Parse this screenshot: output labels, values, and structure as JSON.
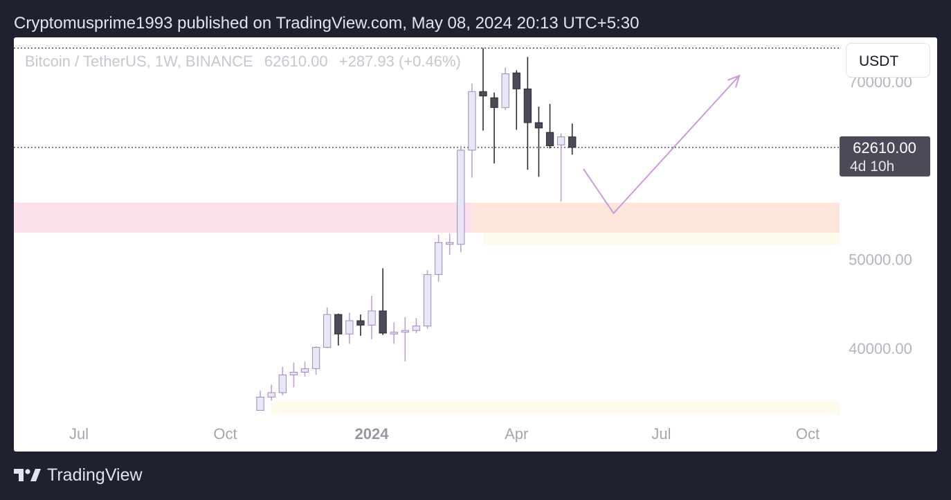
{
  "header": {
    "publish_text": "Cryptomusprime1993 published on TradingView.com, May 08, 2024 20:13 UTC+5:30"
  },
  "symbol": {
    "name": "Bitcoin / TetherUS, 1W, BINANCE",
    "price": "62610.00",
    "change": "+287.93 (+0.46%)"
  },
  "currency_button": {
    "label": "USDT"
  },
  "price_tag": {
    "price": "62610.00",
    "countdown": "4d 10h",
    "color": "#4a4b57"
  },
  "footer": {
    "brand": "TradingView",
    "logo_icon": "tradingview-logo-icon"
  },
  "colors": {
    "bull_fill": "#e9e7f5",
    "bull_stroke": "#9b8ab8",
    "bear_fill": "#4a4b57",
    "wick": "#2b2b36",
    "wick_bull": "#c39ed6",
    "annotation": "#cc99d9"
  },
  "chart_data": {
    "type": "candlestick",
    "timeframe": "1W",
    "ylim": [
      32500,
      75000
    ],
    "y_ticks": [
      40000,
      50000,
      70000
    ],
    "y_tick_labels": [
      "40000.00",
      "50000.00",
      "70000.00"
    ],
    "x_ticks": [
      {
        "label": "Jul",
        "date": "2023-07-01",
        "bold": false
      },
      {
        "label": "Oct",
        "date": "2023-10-01",
        "bold": false
      },
      {
        "label": "2024",
        "date": "2024-01-01",
        "bold": true
      },
      {
        "label": "Apr",
        "date": "2024-04-01",
        "bold": false
      },
      {
        "label": "Jul",
        "date": "2024-07-01",
        "bold": false
      },
      {
        "label": "Oct",
        "date": "2024-10-01",
        "bold": false
      }
    ],
    "first_candle_date": "2023-10-23",
    "candles": [
      {
        "o": 33000,
        "h": 35200,
        "l": 33000,
        "c": 34500
      },
      {
        "o": 34500,
        "h": 35900,
        "l": 34100,
        "c": 35000
      },
      {
        "o": 35000,
        "h": 37900,
        "l": 34700,
        "c": 37000
      },
      {
        "o": 37000,
        "h": 38400,
        "l": 35600,
        "c": 37300
      },
      {
        "o": 37300,
        "h": 38500,
        "l": 36800,
        "c": 37700
      },
      {
        "o": 37700,
        "h": 40200,
        "l": 37000,
        "c": 40100
      },
      {
        "o": 40100,
        "h": 44600,
        "l": 40000,
        "c": 43800
      },
      {
        "o": 43800,
        "h": 43900,
        "l": 40300,
        "c": 41600
      },
      {
        "o": 41600,
        "h": 44000,
        "l": 40500,
        "c": 43100
      },
      {
        "o": 43100,
        "h": 43800,
        "l": 41400,
        "c": 42600
      },
      {
        "o": 42600,
        "h": 45900,
        "l": 41000,
        "c": 44200
      },
      {
        "o": 44200,
        "h": 49000,
        "l": 41500,
        "c": 41700
      },
      {
        "o": 41700,
        "h": 42900,
        "l": 40500,
        "c": 41800
      },
      {
        "o": 41800,
        "h": 43500,
        "l": 38500,
        "c": 42000
      },
      {
        "o": 42000,
        "h": 43400,
        "l": 41700,
        "c": 42500
      },
      {
        "o": 42500,
        "h": 48800,
        "l": 42200,
        "c": 48300
      },
      {
        "o": 48300,
        "h": 52800,
        "l": 47500,
        "c": 51900
      },
      {
        "o": 51700,
        "h": 52900,
        "l": 50500,
        "c": 51900
      },
      {
        "o": 51700,
        "h": 62800,
        "l": 50800,
        "c": 62300
      },
      {
        "o": 62300,
        "h": 69800,
        "l": 59200,
        "c": 68900
      },
      {
        "o": 68900,
        "h": 73800,
        "l": 64500,
        "c": 68400
      },
      {
        "o": 68200,
        "h": 68800,
        "l": 60800,
        "c": 67100
      },
      {
        "o": 67100,
        "h": 71600,
        "l": 66800,
        "c": 70900
      },
      {
        "o": 71000,
        "h": 71300,
        "l": 64600,
        "c": 69200
      },
      {
        "o": 69200,
        "h": 72800,
        "l": 60100,
        "c": 65400
      },
      {
        "o": 65400,
        "h": 67200,
        "l": 59300,
        "c": 64800
      },
      {
        "o": 64300,
        "h": 67500,
        "l": 62500,
        "c": 62800
      },
      {
        "o": 62900,
        "h": 64200,
        "l": 56500,
        "c": 63800
      },
      {
        "o": 63800,
        "h": 65300,
        "l": 61800,
        "c": 62610
      }
    ],
    "horizontal_lines": [
      {
        "price": 73800,
        "style": "dotted"
      },
      {
        "price": 62610,
        "style": "dotted"
      }
    ],
    "zones": [
      {
        "from_date": "2023-05-01",
        "to_date": "2024-03-04",
        "low": 53000,
        "high": 56400,
        "color": "#fce1ea"
      },
      {
        "from_date": "2024-03-04",
        "to_date": "2024-12-01",
        "low": 53000,
        "high": 56400,
        "color": "#fde5dc"
      },
      {
        "from_date": "2024-03-11",
        "to_date": "2024-12-01",
        "low": 51600,
        "high": 53000,
        "color": "#fefbed"
      },
      {
        "from_date": "2023-10-30",
        "to_date": "2024-12-01",
        "low": 32500,
        "high": 34000,
        "color": "#fefbed"
      }
    ],
    "projection_path": [
      {
        "date": "2024-05-13",
        "price": 60200
      },
      {
        "date": "2024-06-01",
        "price": 55200
      },
      {
        "date": "2024-08-19",
        "price": 70700
      }
    ]
  }
}
